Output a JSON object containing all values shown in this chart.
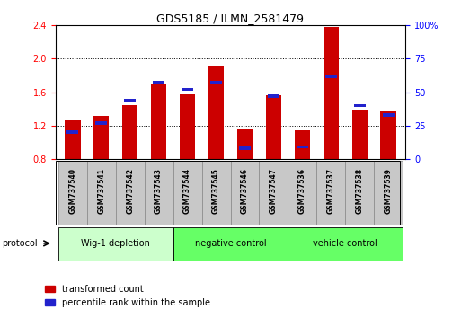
{
  "title": "GDS5185 / ILMN_2581479",
  "samples": [
    "GSM737540",
    "GSM737541",
    "GSM737542",
    "GSM737543",
    "GSM737544",
    "GSM737545",
    "GSM737546",
    "GSM737547",
    "GSM737536",
    "GSM737537",
    "GSM737538",
    "GSM737539"
  ],
  "red_values": [
    1.26,
    1.32,
    1.45,
    1.7,
    1.58,
    1.92,
    1.15,
    1.56,
    1.14,
    2.38,
    1.38,
    1.37
  ],
  "blue_percentiles": [
    20,
    27,
    44,
    57,
    52,
    57,
    8,
    47,
    9,
    62,
    40,
    33
  ],
  "ylim_left": [
    0.8,
    2.4
  ],
  "ylim_right": [
    0,
    100
  ],
  "yticks_left": [
    0.8,
    1.2,
    1.6,
    2.0,
    2.4
  ],
  "yticks_right": [
    0,
    25,
    50,
    75,
    100
  ],
  "bar_width": 0.55,
  "red_color": "#cc0000",
  "blue_color": "#2222cc",
  "title_fontsize": 9,
  "group_info": [
    {
      "start": 0,
      "end": 4,
      "color": "#ccffcc",
      "label": "Wig-1 depletion"
    },
    {
      "start": 4,
      "end": 8,
      "color": "#66ff66",
      "label": "negative control"
    },
    {
      "start": 8,
      "end": 12,
      "color": "#66ff66",
      "label": "vehicle control"
    }
  ],
  "tick_label_bg": "#c8c8c8",
  "legend_red": "transformed count",
  "legend_blue": "percentile rank within the sample",
  "protocol_label": "protocol"
}
